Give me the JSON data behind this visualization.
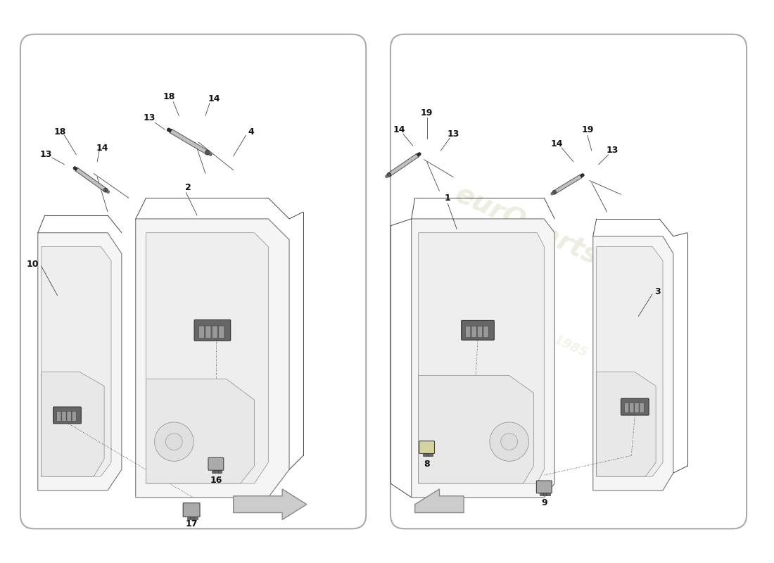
{
  "bg": "#ffffff",
  "panel_fc": "#ffffff",
  "panel_ec": "#aaaaaa",
  "lc": "#444444",
  "door_fc": "#f0f0f0",
  "door_ec": "#666666",
  "part_fc": "#555555",
  "part_ec": "#333333",
  "module_fc": "#bbbbbb",
  "module_ec": "#555555",
  "switch_fc": "#888888",
  "label_fs": 9,
  "watermark1": "eurOparts",
  "watermark2": "a passion for...since1985",
  "wm_color1": "#ccccaa",
  "wm_color2": "#ddddbb"
}
